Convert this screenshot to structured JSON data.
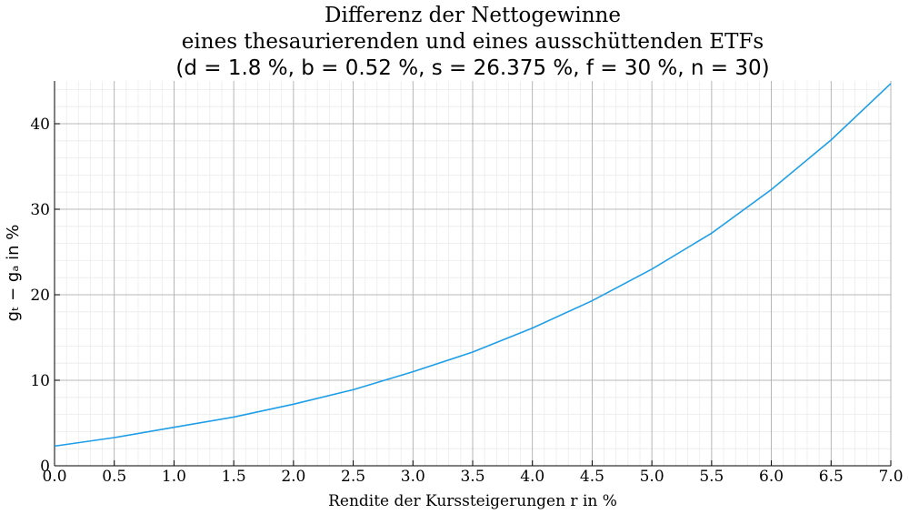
{
  "chart_data": {
    "type": "line",
    "title": [
      "Differenz der Nettogewinne",
      "eines thesaurierenden und eines ausschüttenden ETFs",
      "(d = 1.8 %, b = 0.52 %, s = 26.375 %, f = 30 %, n = 30)"
    ],
    "xlabel": "Rendite der Kurssteigerungen r in %",
    "ylabel": "gₜ − gₐ in %",
    "x": [
      0,
      0.5,
      1,
      1.5,
      2,
      2.5,
      3,
      3.5,
      4,
      4.5,
      5,
      5.5,
      6,
      6.5,
      7
    ],
    "series": [
      {
        "color": "#1f9ee8",
        "values": [
          2.3,
          3.3,
          4.5,
          5.7,
          7.2,
          8.9,
          11.0,
          13.3,
          16.1,
          19.3,
          23.0,
          27.2,
          32.3,
          38.1,
          44.7
        ]
      }
    ],
    "xlim": [
      0,
      7
    ],
    "ylim": [
      0,
      45
    ],
    "xticks": [
      {
        "value": 0,
        "label": "0.0"
      },
      0.5,
      {
        "value": 1,
        "label": "1.0"
      },
      1.5,
      {
        "value": 2,
        "label": "2.0"
      },
      2.5,
      {
        "value": 3,
        "label": "3.0"
      },
      3.5,
      {
        "value": 4,
        "label": "4.0"
      },
      4.5,
      {
        "value": 5,
        "label": "5.0"
      },
      5.5,
      {
        "value": 6,
        "label": "6.0"
      },
      6.5,
      {
        "value": 7,
        "label": "7.0"
      }
    ],
    "yticks": [
      0,
      10,
      20,
      30,
      40
    ],
    "grid": true,
    "minor_grid": true
  }
}
